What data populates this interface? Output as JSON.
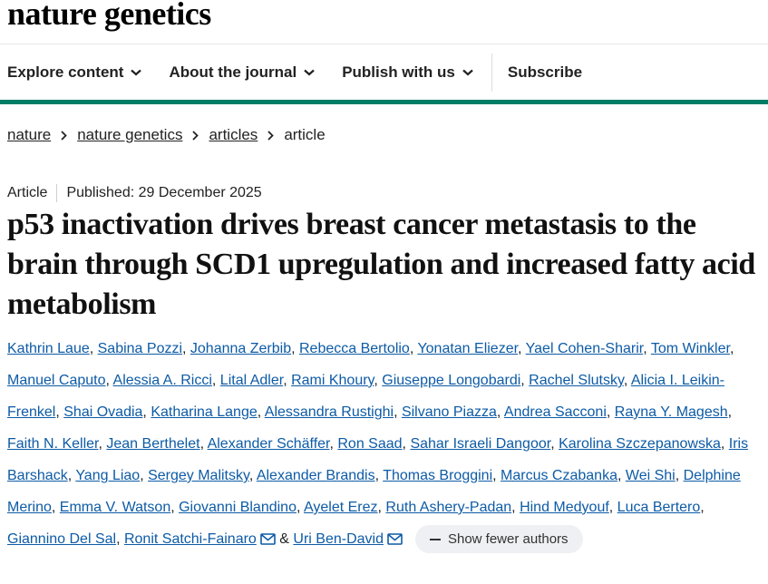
{
  "header": {
    "logo": "nature genetics"
  },
  "nav": {
    "items": [
      {
        "label": "Explore content"
      },
      {
        "label": "About the journal"
      },
      {
        "label": "Publish with us"
      }
    ],
    "subscribe_label": "Subscribe"
  },
  "colors": {
    "accent_bar": "#007d67",
    "link": "#0d5ba6"
  },
  "breadcrumb": [
    "nature",
    "nature genetics",
    "articles",
    "article"
  ],
  "article": {
    "type": "Article",
    "published": "Published: 29 December 2025",
    "title": "p53 inactivation drives breast cancer metastasis to the brain through SCD1 upregulation and increased fatty acid metabolism"
  },
  "authors": [
    "Kathrin Laue",
    "Sabina Pozzi",
    "Johanna Zerbib",
    "Rebecca Bertolio",
    "Yonatan Eliezer",
    "Yael Cohen-Sharir",
    "Tom Winkler",
    "Manuel Caputo",
    "Alessia A. Ricci",
    "Lital Adler",
    "Rami Khoury",
    "Giuseppe Longobardi",
    "Rachel Slutsky",
    "Alicia I. Leikin-Frenkel",
    "Shai Ovadia",
    "Katharina Lange",
    "Alessandra Rustighi",
    "Silvano Piazza",
    "Andrea Sacconi",
    "Rayna Y. Magesh",
    "Faith N. Keller",
    "Jean Berthelet",
    "Alexander Schäffer",
    "Ron Saad",
    "Sahar Israeli Dangoor",
    "Karolina Szczepanowska",
    "Iris Barshack",
    "Yang Liao",
    "Sergey Malitsky",
    "Alexander Brandis",
    "Thomas Broggini",
    "Marcus Czabanka",
    "Wei Shi",
    "Delphine Merino",
    "Emma V. Watson",
    "Giovanni Blandino",
    "Ayelet Erez",
    "Ruth Ashery-Padan",
    "Hind Medyouf",
    "Luca Bertero",
    "Giannino Del Sal",
    "Ronit Satchi-Fainaro",
    "Uri Ben-David"
  ],
  "authors_extra": {
    "connector": "&",
    "corresponding_icon": "mail-icon",
    "show_fewer_label": "Show fewer authors"
  }
}
